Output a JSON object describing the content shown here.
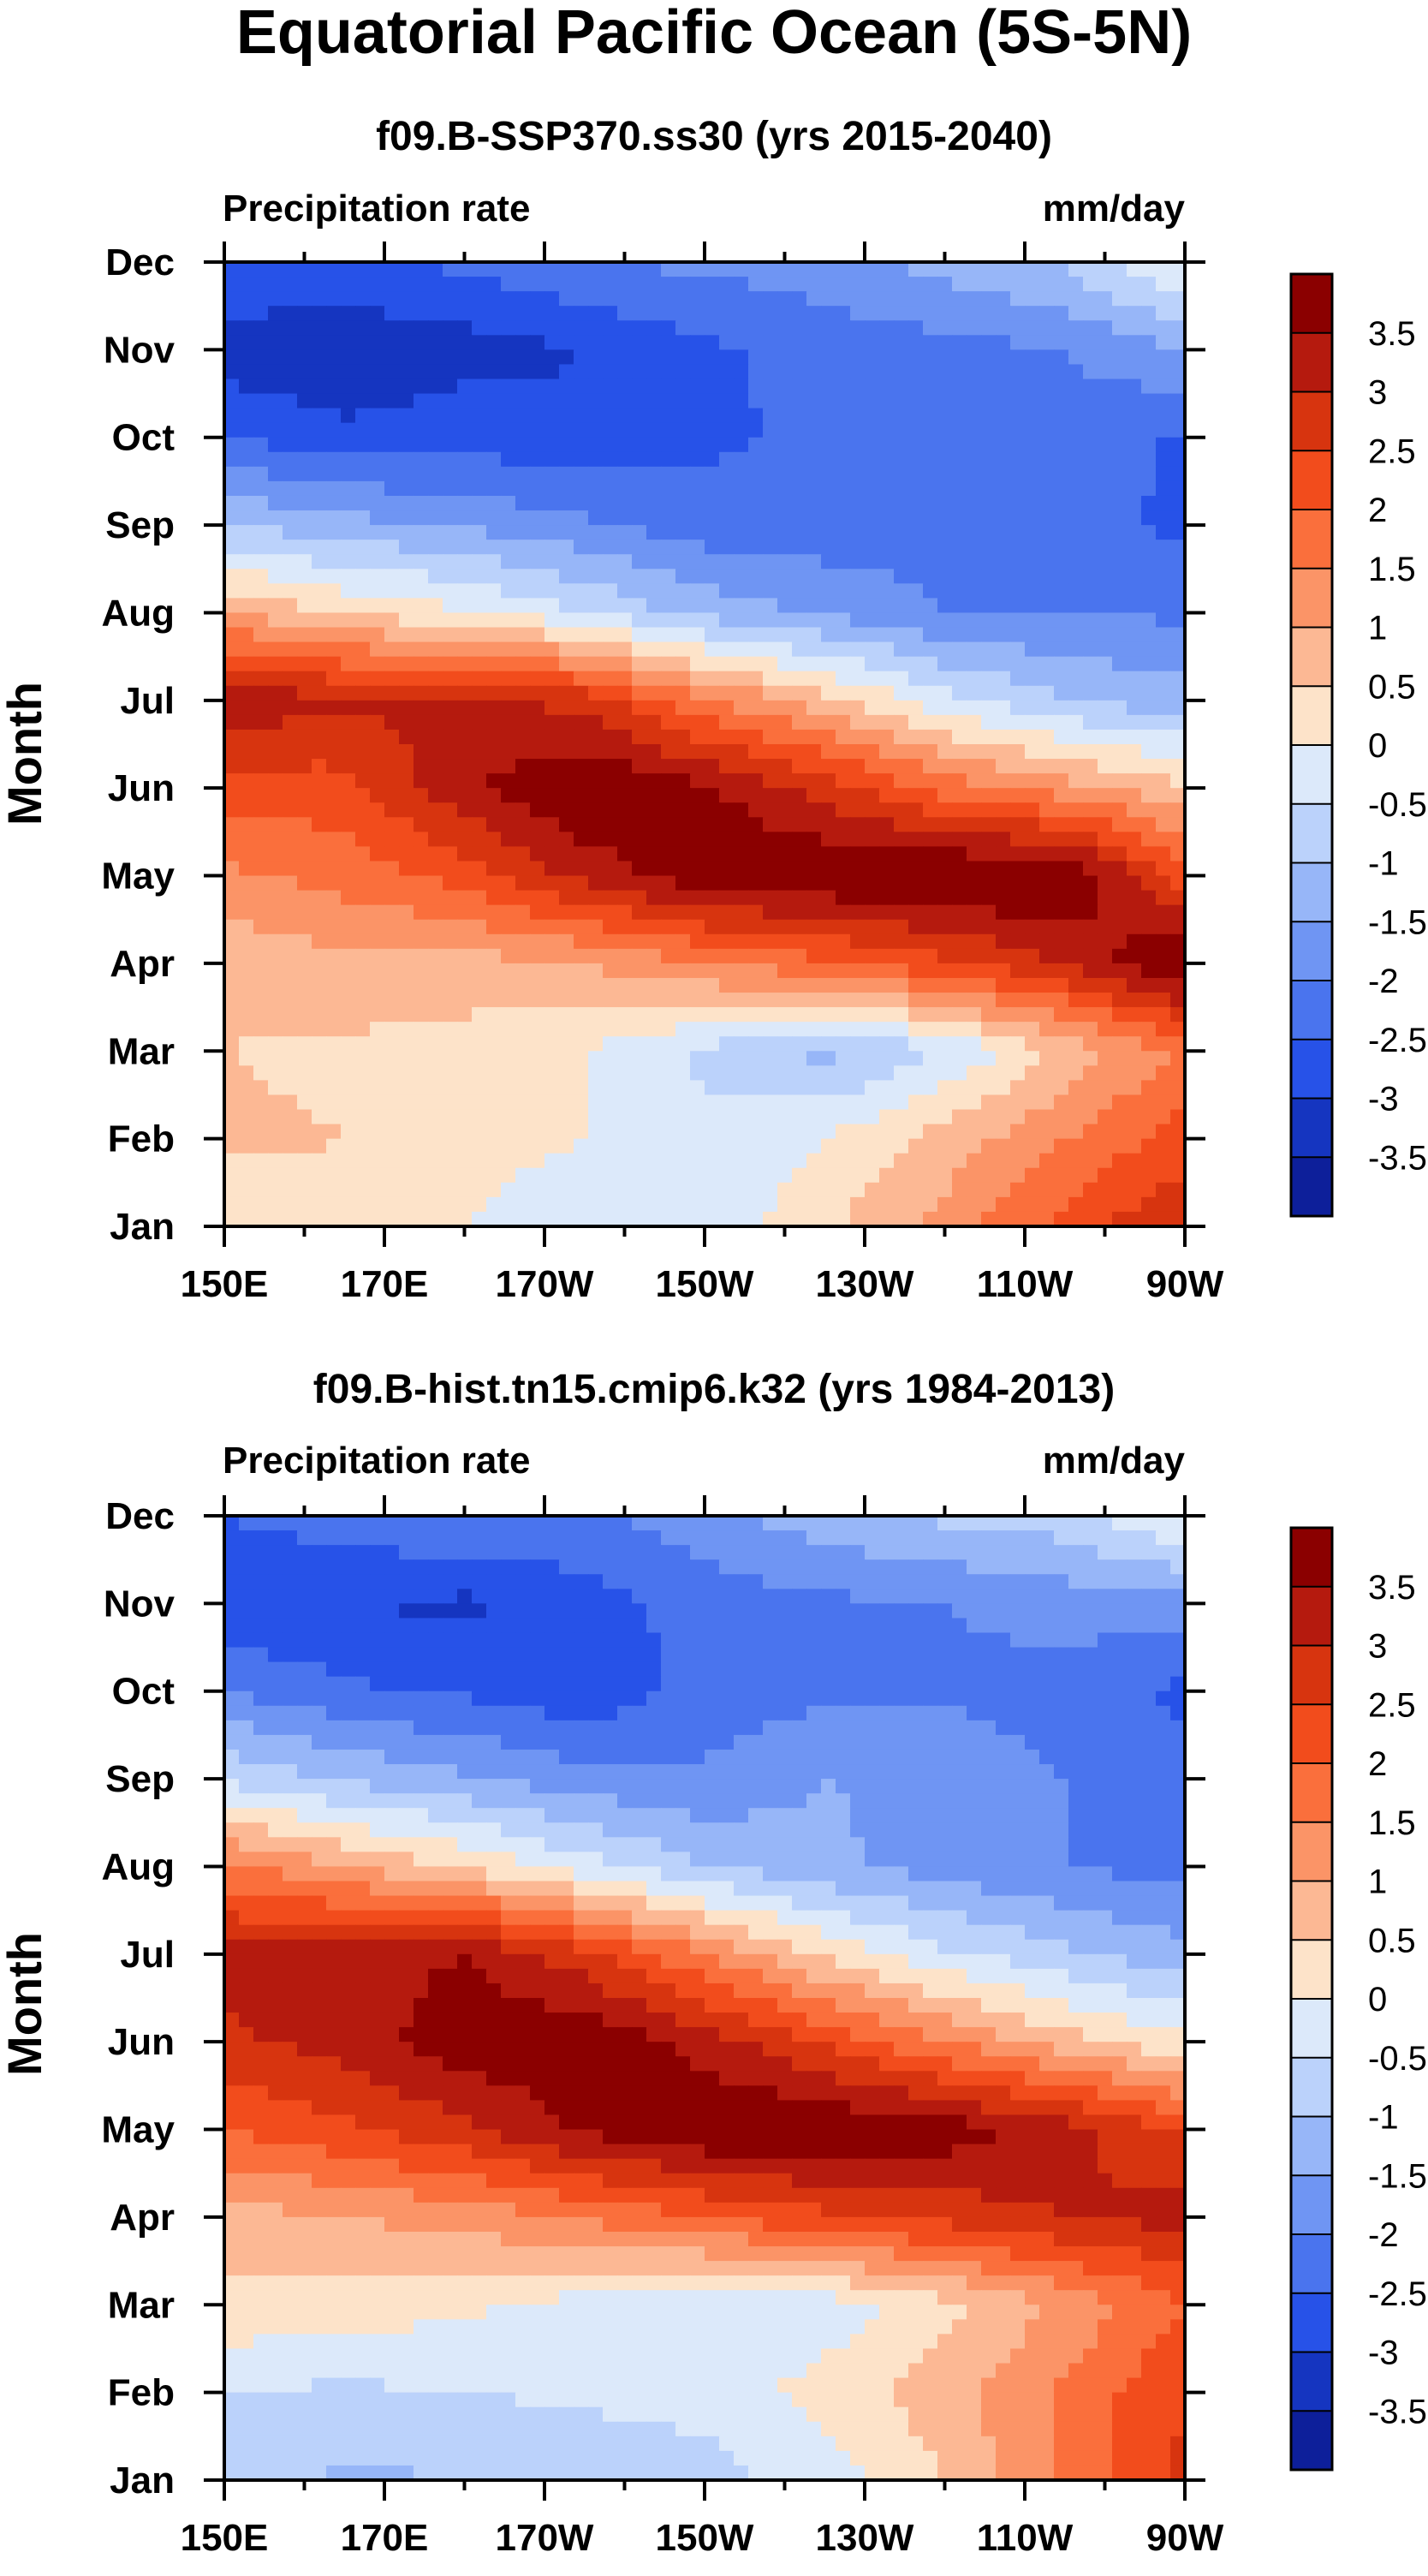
{
  "figure_title": "Equatorial Pacific Ocean (5S-5N)",
  "chart_data": [
    {
      "type": "heatmap",
      "title": "f09.B-SSP370.ss30 (yrs 2015-2040)",
      "left_label": "Precipitation rate",
      "right_label": "mm/day",
      "ylabel": "Month",
      "xlabel": "",
      "x_ticks": [
        "150E",
        "170E",
        "170W",
        "150W",
        "130W",
        "110W",
        "90W"
      ],
      "y_ticks": [
        "Jan",
        "Feb",
        "Mar",
        "Apr",
        "May",
        "Jun",
        "Jul",
        "Aug",
        "Sep",
        "Oct",
        "Nov",
        "Dec"
      ],
      "x_range_deg_east": [
        150,
        270
      ],
      "x_grid_deg_east": [
        150,
        165,
        180,
        195,
        210,
        225,
        240,
        255,
        270
      ],
      "values": [
        [
          0.2,
          0.3,
          0.0,
          -0.3,
          -0.4,
          0.4,
          1.2,
          2.2,
          3.0
        ],
        [
          0.6,
          0.5,
          0.2,
          0.0,
          -0.4,
          0.0,
          0.7,
          1.5,
          2.2
        ],
        [
          0.5,
          0.4,
          0.3,
          0.0,
          -0.6,
          -1.2,
          -0.5,
          0.6,
          1.6
        ],
        [
          0.6,
          0.9,
          0.8,
          1.0,
          1.5,
          1.9,
          2.4,
          3.0,
          4.2
        ],
        [
          1.4,
          1.7,
          2.2,
          3.2,
          3.9,
          4.0,
          4.1,
          4.1,
          2.2
        ],
        [
          2.2,
          2.3,
          3.4,
          4.0,
          3.6,
          2.8,
          1.8,
          1.2,
          0.6
        ],
        [
          3.4,
          3.1,
          3.2,
          2.8,
          1.6,
          0.7,
          -0.3,
          -1.0,
          -1.3
        ],
        [
          1.0,
          0.4,
          0.1,
          -0.5,
          -1.2,
          -1.6,
          -2.0,
          -2.0,
          -2.1
        ],
        [
          -1.0,
          -1.3,
          -1.6,
          -1.9,
          -2.3,
          -2.3,
          -2.2,
          -2.3,
          -2.6
        ],
        [
          -2.5,
          -2.9,
          -2.7,
          -2.9,
          -2.6,
          -2.4,
          -2.3,
          -2.2,
          -2.6
        ],
        [
          -3.3,
          -3.4,
          -3.2,
          -3.0,
          -2.6,
          -2.3,
          -2.2,
          -2.0,
          -1.5
        ],
        [
          -2.5,
          -2.6,
          -2.4,
          -2.0,
          -1.9,
          -1.7,
          -1.3,
          -0.9,
          0.2
        ]
      ]
    },
    {
      "type": "heatmap",
      "title": "f09.B-hist.tn15.cmip6.k32 (yrs 1984-2013)",
      "left_label": "Precipitation rate",
      "right_label": "mm/day",
      "ylabel": "Month",
      "xlabel": "",
      "x_ticks": [
        "150E",
        "170E",
        "170W",
        "150W",
        "130W",
        "110W",
        "90W"
      ],
      "y_ticks": [
        "Jan",
        "Feb",
        "Mar",
        "Apr",
        "May",
        "Jun",
        "Jul",
        "Aug",
        "Sep",
        "Oct",
        "Nov",
        "Dec"
      ],
      "x_range_deg_east": [
        150,
        270
      ],
      "x_grid_deg_east": [
        150,
        165,
        180,
        195,
        210,
        225,
        240,
        255,
        270
      ],
      "values": [
        [
          -0.8,
          -1.1,
          -1.0,
          -0.9,
          -0.7,
          -0.3,
          0.5,
          1.6,
          2.6
        ],
        [
          -0.5,
          -0.6,
          -0.5,
          -0.4,
          -0.3,
          0.2,
          0.8,
          1.6,
          2.5
        ],
        [
          0.4,
          0.3,
          0.1,
          -0.2,
          -0.4,
          -0.3,
          0.3,
          1.1,
          2.0
        ],
        [
          0.8,
          1.0,
          1.2,
          1.6,
          2.0,
          2.4,
          2.7,
          3.0,
          3.2
        ],
        [
          2.0,
          2.4,
          2.9,
          3.6,
          4.0,
          4.0,
          3.8,
          3.2,
          2.4
        ],
        [
          2.9,
          3.2,
          3.8,
          3.9,
          3.3,
          2.4,
          1.5,
          0.7,
          0.1
        ],
        [
          3.2,
          3.3,
          3.5,
          2.7,
          1.5,
          0.4,
          -0.4,
          -0.9,
          -1.3
        ],
        [
          1.6,
          1.0,
          0.4,
          -0.3,
          -1.0,
          -1.4,
          -1.7,
          -2.0,
          -2.2
        ],
        [
          -0.6,
          -1.1,
          -1.4,
          -1.8,
          -1.9,
          -1.5,
          -1.6,
          -2.0,
          -2.3
        ],
        [
          -2.0,
          -2.4,
          -2.6,
          -2.9,
          -2.3,
          -2.1,
          -2.1,
          -2.2,
          -2.6
        ],
        [
          -3.0,
          -3.0,
          -3.1,
          -2.7,
          -2.3,
          -2.1,
          -2.0,
          -1.8,
          -1.7
        ],
        [
          -2.5,
          -2.2,
          -2.0,
          -2.1,
          -1.7,
          -1.2,
          -0.9,
          -0.7,
          0.1
        ]
      ]
    }
  ],
  "colorbar": {
    "tick_labels": [
      "3.5",
      "3",
      "2.5",
      "2",
      "1.5",
      "1",
      "0.5",
      "0",
      "-0.5",
      "-1",
      "-1.5",
      "-2",
      "-2.5",
      "-3",
      "-3.5"
    ],
    "levels": [
      3.5,
      3,
      2.5,
      2,
      1.5,
      1,
      0.5,
      0,
      -0.5,
      -1,
      -1.5,
      -2,
      -2.5,
      -3,
      -3.5
    ],
    "colors_top_to_bottom": [
      "#8b0000",
      "#b51a0e",
      "#d7340f",
      "#f24c1c",
      "#fa6f3c",
      "#fb9467",
      "#fcb894",
      "#fde3c9",
      "#dce9fa",
      "#bbd2fb",
      "#97b6f8",
      "#6f95f3",
      "#4a74ee",
      "#2752e8",
      "#1535c0",
      "#0d1f9a"
    ]
  }
}
